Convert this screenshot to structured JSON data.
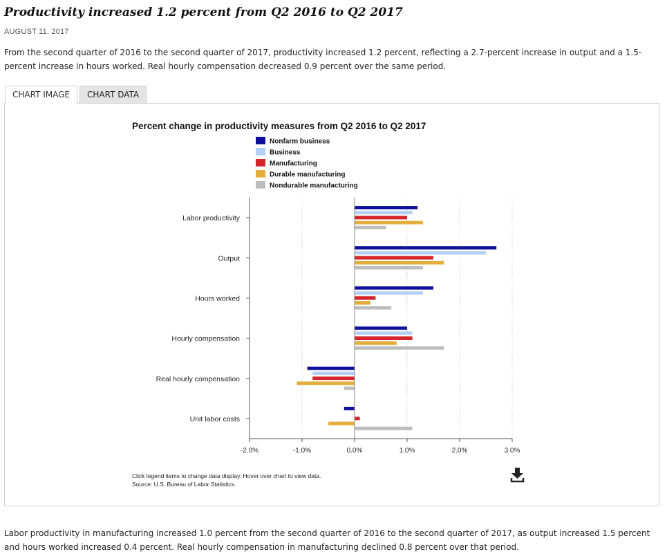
{
  "page": {
    "title": "Productivity increased 1.2 percent from Q2 2016 to Q2 2017",
    "date": "AUGUST 11, 2017",
    "intro": "From the second quarter of 2016 to the second quarter of 2017, productivity increased 1.2 percent, reflecting a 2.7-percent increase in output and a 1.5-percent increase in hours worked. Real hourly compensation decreased 0.9 percent over the same period.",
    "outro": "Labor productivity in manufacturing increased 1.0 percent from the second quarter of 2016 to the second quarter of 2017, as output increased 1.5 percent and hours worked increased 0.4 percent. Real hourly compensation in manufacturing declined 0.8 percent over that period.",
    "tabs": [
      {
        "label": "CHART IMAGE",
        "active": true
      },
      {
        "label": "CHART DATA",
        "active": false
      }
    ]
  },
  "chart_data": {
    "type": "bar",
    "orientation": "horizontal",
    "title": "Percent change in productivity measures from Q2 2016 to Q2 2017",
    "categories": [
      "Labor productivity",
      "Output",
      "Hours worked",
      "Hourly compensation",
      "Real hourly compensation",
      "Unit labor costs"
    ],
    "series": [
      {
        "name": "Nonfarm business",
        "color": "#10109a",
        "values": [
          1.2,
          2.7,
          1.5,
          1.0,
          -0.9,
          -0.2
        ]
      },
      {
        "name": "Business",
        "color": "#b3cff5",
        "values": [
          1.1,
          2.5,
          1.3,
          1.1,
          -0.8,
          0.0
        ]
      },
      {
        "name": "Manufacturing",
        "color": "#d3252b",
        "values": [
          1.0,
          1.5,
          0.4,
          1.1,
          -0.8,
          0.1
        ]
      },
      {
        "name": "Durable manufacturing",
        "color": "#e3ae3b",
        "values": [
          1.3,
          1.7,
          0.3,
          0.8,
          -1.1,
          -0.5
        ]
      },
      {
        "name": "Nondurable manufacturing",
        "color": "#bdbdbd",
        "values": [
          0.6,
          1.3,
          0.7,
          1.7,
          -0.2,
          1.1
        ]
      }
    ],
    "xlim": [
      -2.0,
      3.0
    ],
    "xticks": [
      "-2.0%",
      "-1.0%",
      "0.0%",
      "1.0%",
      "2.0%",
      "3.0%"
    ],
    "grid": true,
    "legend_position": "top-left",
    "notes": [
      "Click legend items to change data display. Hover over chart to view data.",
      "Source: U.S. Bureau of Labor Statistics."
    ],
    "download_icon": "download-icon"
  }
}
